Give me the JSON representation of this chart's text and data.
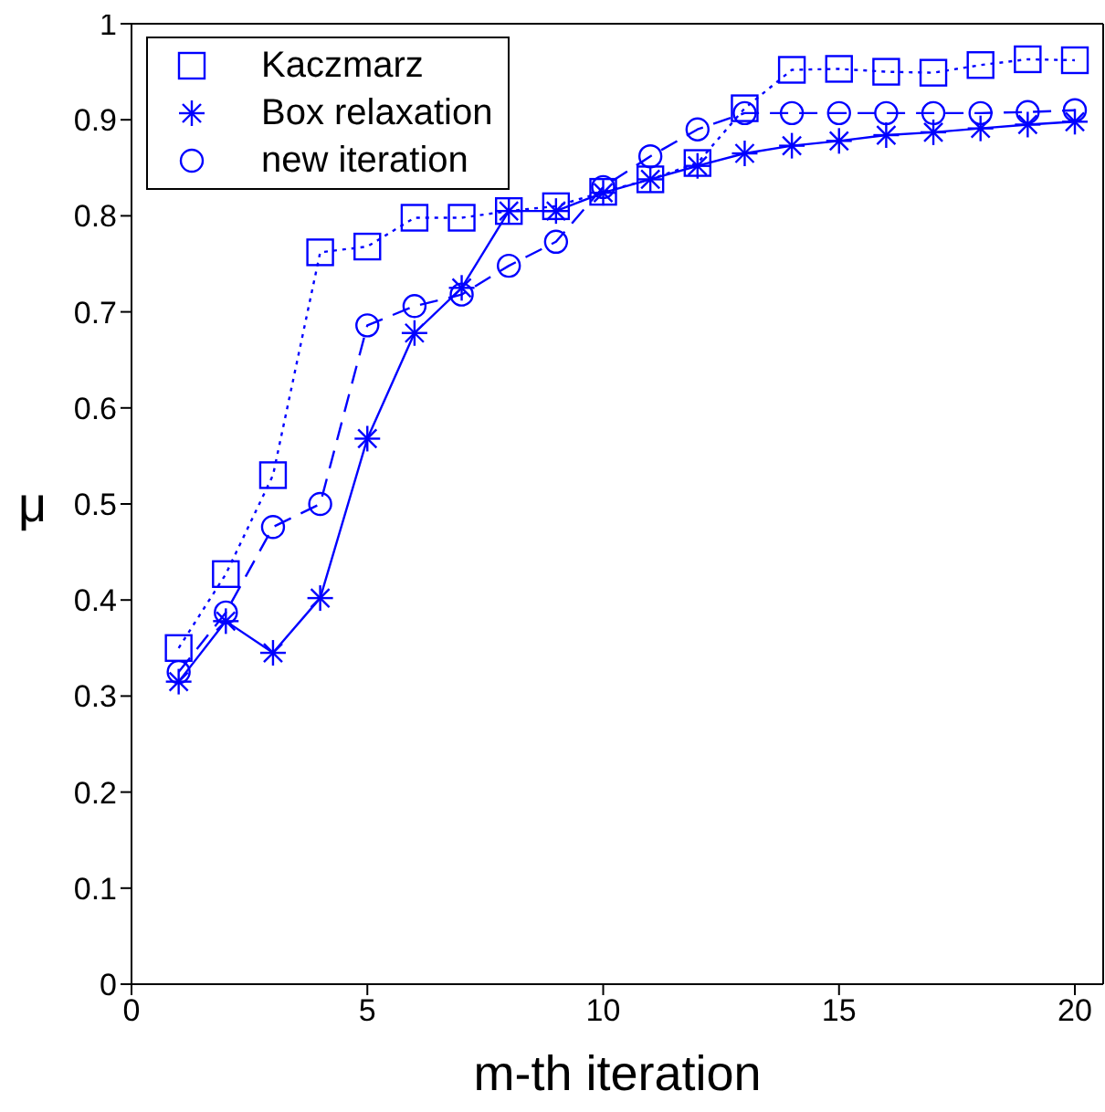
{
  "chart_data": {
    "type": "line",
    "xlabel": "m-th iteration",
    "ylabel": "μ",
    "x": [
      1,
      2,
      3,
      4,
      5,
      6,
      7,
      8,
      9,
      10,
      11,
      12,
      13,
      14,
      15,
      16,
      17,
      18,
      19,
      20
    ],
    "xlim": [
      0,
      20.6
    ],
    "xticks": [
      0,
      5,
      10,
      15,
      20
    ],
    "ylim": [
      0,
      1
    ],
    "yticks": [
      0,
      0.1,
      0.2,
      0.3,
      0.4,
      0.5,
      0.6,
      0.7,
      0.8,
      0.9,
      1
    ],
    "grid": false,
    "legend": "top left",
    "series": [
      {
        "name": "Kaczmarz",
        "color": "#0000ff",
        "marker": "square",
        "line_style": "dotted",
        "values": [
          0.35,
          0.427,
          0.53,
          0.762,
          0.768,
          0.798,
          0.798,
          0.805,
          0.81,
          0.825,
          0.838,
          0.855,
          0.912,
          0.952,
          0.953,
          0.95,
          0.949,
          0.957,
          0.963,
          0.962
        ]
      },
      {
        "name": "Box relaxation",
        "color": "#0000ff",
        "marker": "cross",
        "line_style": "solid",
        "values": [
          0.315,
          0.378,
          0.345,
          0.402,
          0.568,
          0.678,
          0.725,
          0.805,
          0.805,
          0.824,
          0.838,
          0.852,
          0.865,
          0.873,
          0.878,
          0.884,
          0.887,
          0.891,
          0.895,
          0.898
        ]
      },
      {
        "name": "new iteration",
        "color": "#0000ff",
        "marker": "circle",
        "line_style": "dashed",
        "values": [
          0.325,
          0.387,
          0.476,
          0.5,
          0.686,
          0.706,
          0.718,
          0.748,
          0.773,
          0.83,
          0.862,
          0.89,
          0.907,
          0.907,
          0.907,
          0.907,
          0.907,
          0.907,
          0.908,
          0.91
        ]
      }
    ]
  }
}
